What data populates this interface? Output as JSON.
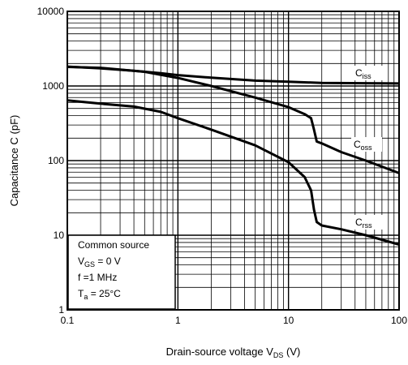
{
  "chart_data": {
    "type": "line",
    "xscale": "log",
    "yscale": "log",
    "xlim": [
      0.1,
      100
    ],
    "ylim": [
      1,
      10000
    ],
    "grid": true,
    "xlabel": {
      "main": "Drain-source voltage",
      "symbol": "V",
      "sub": "DS",
      "unit": "(V)"
    },
    "ylabel": "Capacitance C (pF)",
    "x_ticks": [
      {
        "v": 0.1,
        "label": "0.1"
      },
      {
        "v": 1,
        "label": "1"
      },
      {
        "v": 10,
        "label": "10"
      },
      {
        "v": 100,
        "label": "100"
      }
    ],
    "y_ticks": [
      {
        "v": 1,
        "label": "1"
      },
      {
        "v": 10,
        "label": "10"
      },
      {
        "v": 100,
        "label": "100"
      },
      {
        "v": 1000,
        "label": "1000"
      },
      {
        "v": 10000,
        "label": "10000"
      }
    ],
    "series": [
      {
        "name": "Ciss",
        "main": "C",
        "sub": "iss",
        "points": [
          [
            0.1,
            1820
          ],
          [
            0.2,
            1720
          ],
          [
            0.4,
            1600
          ],
          [
            0.7,
            1480
          ],
          [
            1,
            1400
          ],
          [
            2,
            1290
          ],
          [
            5,
            1180
          ],
          [
            10,
            1140
          ],
          [
            20,
            1100
          ],
          [
            50,
            1090
          ],
          [
            100,
            1080
          ]
        ]
      },
      {
        "name": "Coss",
        "main": "C",
        "sub": "oss",
        "points": [
          [
            0.1,
            1800
          ],
          [
            0.2,
            1750
          ],
          [
            0.5,
            1550
          ],
          [
            1,
            1280
          ],
          [
            2,
            1000
          ],
          [
            5,
            700
          ],
          [
            10,
            520
          ],
          [
            14,
            420
          ],
          [
            16,
            370
          ],
          [
            17,
            260
          ],
          [
            18,
            180
          ],
          [
            20,
            170
          ],
          [
            30,
            130
          ],
          [
            50,
            100
          ],
          [
            100,
            68
          ]
        ]
      },
      {
        "name": "Crss",
        "main": "C",
        "sub": "rss",
        "points": [
          [
            0.1,
            640
          ],
          [
            0.2,
            580
          ],
          [
            0.4,
            530
          ],
          [
            0.7,
            450
          ],
          [
            1,
            370
          ],
          [
            2,
            260
          ],
          [
            5,
            160
          ],
          [
            10,
            95
          ],
          [
            14,
            60
          ],
          [
            16,
            40
          ],
          [
            17,
            22
          ],
          [
            18,
            15
          ],
          [
            20,
            13.5
          ],
          [
            30,
            12
          ],
          [
            50,
            10
          ],
          [
            100,
            7.5
          ]
        ]
      }
    ],
    "legend": {
      "title": "Common source",
      "lines": [
        {
          "main": "V",
          "sub": "GS",
          "rest": " = 0 V"
        },
        {
          "main": "f =1 MHz",
          "sub": "",
          "rest": ""
        },
        {
          "main": "T",
          "sub": "a",
          "rest": " = 25°C"
        }
      ]
    }
  }
}
